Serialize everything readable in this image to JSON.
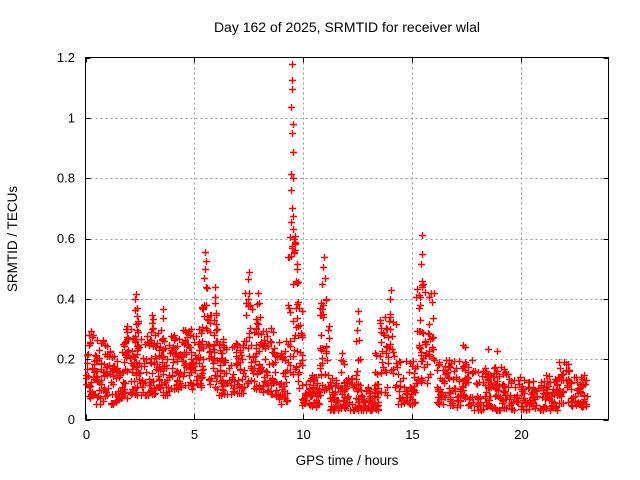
{
  "figure": {
    "background": "#ffffff"
  },
  "chart_data": {
    "type": "scatter",
    "title": "Day 162 of 2025, SRMTID for receiver wlal",
    "xlabel": "GPS time / hours",
    "ylabel": "SRMTID / TECUs",
    "xlim": [
      0,
      24
    ],
    "ylim": [
      0,
      1.2
    ],
    "xticks": [
      0,
      5,
      10,
      15,
      20
    ],
    "xtick_labels": [
      "0",
      "5",
      "10",
      "15",
      "20"
    ],
    "yticks": [
      0,
      0.2,
      0.4,
      0.6,
      0.8,
      1,
      1.2
    ],
    "ytick_labels": [
      "0",
      "0.2",
      "0.4",
      "0.6",
      "0.8",
      "1",
      "1.2"
    ],
    "grid": "dashed",
    "grid_color": "#999999",
    "border_color": "#000000",
    "text_color": "#000000",
    "marker": "plus",
    "marker_color": "#ff0000",
    "peak_points": [
      [
        9.47,
        1.18
      ],
      [
        9.49,
        1.127
      ],
      [
        9.48,
        1.094
      ],
      [
        9.45,
        1.035
      ],
      [
        9.5,
        0.978
      ],
      [
        9.47,
        0.951
      ],
      [
        9.51,
        0.888
      ],
      [
        9.45,
        0.815
      ],
      [
        9.5,
        0.802
      ],
      [
        9.44,
        0.76
      ],
      [
        9.48,
        0.7
      ],
      [
        9.51,
        0.675
      ],
      [
        9.42,
        0.655
      ],
      [
        9.53,
        0.63
      ],
      [
        9.4,
        0.605
      ],
      [
        9.46,
        0.575
      ],
      [
        5.5,
        0.555
      ],
      [
        5.52,
        0.525
      ],
      [
        5.47,
        0.5
      ],
      [
        5.95,
        0.44
      ],
      [
        7.5,
        0.49
      ],
      [
        7.47,
        0.465
      ],
      [
        7.9,
        0.42
      ],
      [
        2.3,
        0.415
      ],
      [
        3.55,
        0.365
      ],
      [
        10.95,
        0.54
      ],
      [
        10.92,
        0.505
      ],
      [
        11.0,
        0.47
      ],
      [
        12.5,
        0.36
      ],
      [
        14.0,
        0.43
      ],
      [
        13.96,
        0.4
      ],
      [
        15.42,
        0.61
      ],
      [
        15.45,
        0.55
      ],
      [
        15.4,
        0.515
      ],
      [
        15.46,
        0.46
      ],
      [
        16.0,
        0.42
      ],
      [
        21.95,
        0.19
      ]
    ],
    "clusters": [
      [
        0.0,
        0.35,
        30,
        0.07,
        0.3,
        1.3
      ],
      [
        0.35,
        0.85,
        40,
        0.05,
        0.27,
        1.5
      ],
      [
        0.85,
        1.15,
        22,
        0.06,
        0.25,
        1.3
      ],
      [
        1.15,
        1.65,
        40,
        0.05,
        0.22,
        1.5
      ],
      [
        1.65,
        2.15,
        42,
        0.07,
        0.31,
        1.4
      ],
      [
        1.8,
        1.95,
        8,
        0.2,
        0.34,
        1.2
      ],
      [
        2.15,
        2.65,
        42,
        0.08,
        0.3,
        1.4
      ],
      [
        2.25,
        2.45,
        10,
        0.22,
        0.4,
        1.2
      ],
      [
        2.65,
        3.25,
        45,
        0.08,
        0.3,
        1.4
      ],
      [
        2.95,
        3.15,
        8,
        0.2,
        0.35,
        1.2
      ],
      [
        3.25,
        3.85,
        45,
        0.08,
        0.3,
        1.4
      ],
      [
        3.45,
        3.65,
        8,
        0.2,
        0.37,
        1.2
      ],
      [
        3.85,
        4.45,
        45,
        0.1,
        0.28,
        1.3
      ],
      [
        4.45,
        5.05,
        45,
        0.1,
        0.3,
        1.3
      ],
      [
        4.55,
        4.75,
        8,
        0.2,
        0.31,
        1.1
      ],
      [
        5.05,
        5.4,
        28,
        0.1,
        0.3,
        1.3
      ],
      [
        5.35,
        5.65,
        20,
        0.15,
        0.48,
        1.2
      ],
      [
        5.65,
        6.1,
        35,
        0.1,
        0.36,
        1.4
      ],
      [
        5.88,
        6.02,
        8,
        0.25,
        0.42,
        1.1
      ],
      [
        6.1,
        6.7,
        45,
        0.08,
        0.27,
        1.4
      ],
      [
        6.7,
        7.3,
        45,
        0.08,
        0.26,
        1.4
      ],
      [
        7.3,
        7.65,
        24,
        0.12,
        0.44,
        1.3
      ],
      [
        7.65,
        8.1,
        35,
        0.1,
        0.34,
        1.3
      ],
      [
        7.82,
        7.97,
        8,
        0.22,
        0.4,
        1.1
      ],
      [
        8.1,
        8.7,
        45,
        0.08,
        0.31,
        1.4
      ],
      [
        8.7,
        9.3,
        45,
        0.05,
        0.26,
        1.4
      ],
      [
        9.3,
        9.75,
        40,
        0.15,
        0.62,
        1.1
      ],
      [
        9.7,
        9.95,
        20,
        0.1,
        0.45,
        1.3
      ],
      [
        9.95,
        10.75,
        55,
        0.04,
        0.15,
        1.4
      ],
      [
        10.75,
        11.2,
        40,
        0.08,
        0.45,
        1.5
      ],
      [
        11.2,
        12.3,
        70,
        0.03,
        0.14,
        1.4
      ],
      [
        11.7,
        11.85,
        8,
        0.08,
        0.23,
        1.2
      ],
      [
        12.4,
        12.62,
        12,
        0.1,
        0.34,
        1.3
      ],
      [
        12.3,
        13.5,
        75,
        0.03,
        0.12,
        1.4
      ],
      [
        13.25,
        13.42,
        8,
        0.08,
        0.26,
        1.2
      ],
      [
        13.5,
        14.25,
        45,
        0.08,
        0.35,
        1.4
      ],
      [
        14.25,
        15.15,
        55,
        0.05,
        0.2,
        1.4
      ],
      [
        15.15,
        16.1,
        60,
        0.12,
        0.45,
        1.3
      ],
      [
        16.1,
        16.7,
        40,
        0.05,
        0.2,
        1.4
      ],
      [
        16.7,
        17.8,
        65,
        0.04,
        0.2,
        1.5
      ],
      [
        17.15,
        17.45,
        10,
        0.12,
        0.26,
        1.2
      ],
      [
        17.8,
        19.4,
        90,
        0.03,
        0.18,
        1.5
      ],
      [
        18.35,
        18.9,
        15,
        0.1,
        0.25,
        1.2
      ],
      [
        19.4,
        20.6,
        70,
        0.03,
        0.14,
        1.5
      ],
      [
        20.6,
        21.7,
        65,
        0.03,
        0.15,
        1.5
      ],
      [
        21.7,
        22.2,
        35,
        0.05,
        0.19,
        1.3
      ],
      [
        22.2,
        23.0,
        50,
        0.04,
        0.15,
        1.4
      ]
    ]
  }
}
